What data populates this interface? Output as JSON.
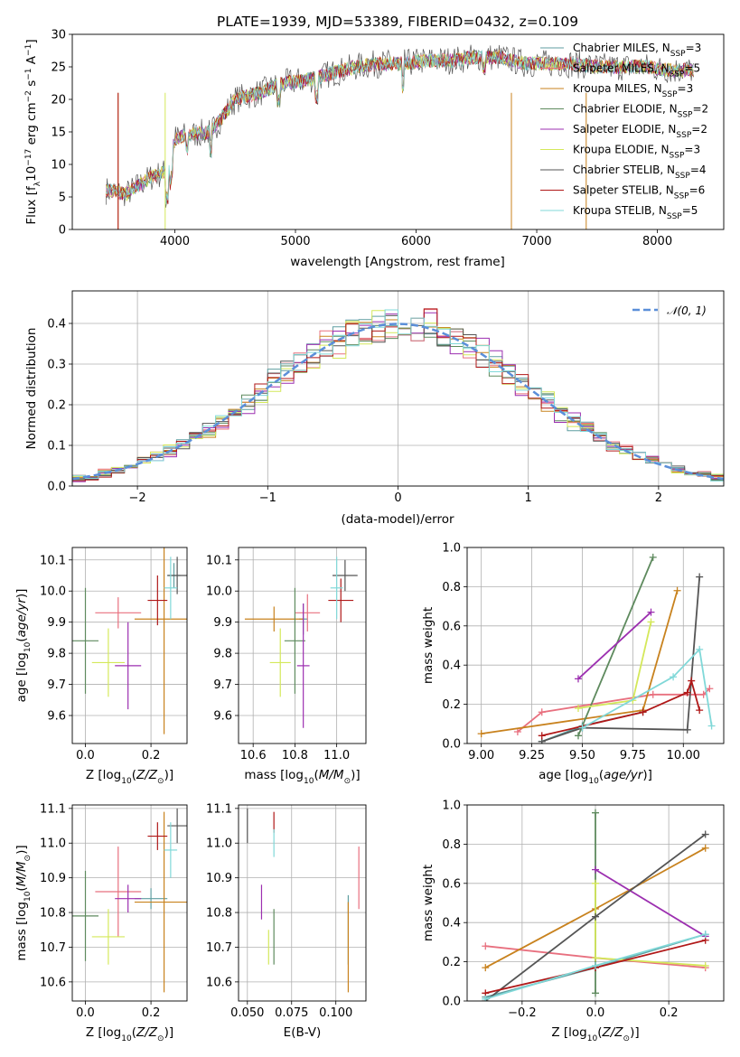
{
  "title": "PLATE=1939, MJD=53389, FIBERID=0432, z=0.109",
  "colors": {
    "Chabrier MILES": "#5f9ea0",
    "Salpeter MILES": "#e8707f",
    "Kroupa MILES": "#c8821e",
    "Chabrier ELODIE": "#5e8a5e",
    "Salpeter ELODIE": "#9c2fb0",
    "Kroupa ELODIE": "#d4e85a",
    "Chabrier STELIB": "#555555",
    "Salpeter STELIB": "#b01818",
    "Kroupa STELIB": "#80d8d8",
    "gauss": "#5b8fd9"
  },
  "chart_data": [
    {
      "id": "spectrum",
      "type": "line",
      "xlabel": "wavelength [Angstrom, rest frame]",
      "ylabel": "Flux [f_λ10^-17 erg cm^-2 s^-1 A^-1]",
      "xlim": [
        3150,
        8550
      ],
      "ylim": [
        0,
        30
      ],
      "xticks": [
        "4000",
        "5000",
        "6000",
        "7000",
        "8000"
      ],
      "yticks": [
        "0",
        "5",
        "10",
        "15",
        "20",
        "25",
        "30"
      ],
      "grid": false,
      "legend": "top-right",
      "legend_entries": [
        "Chabrier MILES, N_SSP=3",
        "Salpeter MILES, N_SSP=5",
        "Kroupa MILES, N_SSP=3",
        "Chabrier ELODIE, N_SSP=2",
        "Salpeter ELODIE, N_SSP=2",
        "Kroupa ELODIE, N_SSP=3",
        "Chabrier STELIB, N_SSP=4",
        "Salpeter STELIB, N_SSP=6",
        "Kroupa STELIB, N_SSP=5"
      ],
      "x": [
        3450,
        3600,
        3800,
        3950,
        4000,
        4100,
        4300,
        4500,
        4700,
        4900,
        5100,
        5300,
        5500,
        5700,
        5900,
        6100,
        6300,
        6500,
        6700,
        6900,
        7100,
        7300,
        7500,
        7700,
        7900,
        8100,
        8300
      ],
      "y": [
        6,
        5.5,
        8,
        9,
        14,
        14.5,
        15,
        20,
        21,
        22.5,
        23,
        24,
        25,
        25.5,
        25.5,
        26,
        26,
        26.5,
        26.5,
        25.5,
        25.5,
        25.5,
        25,
        25,
        25,
        24.5,
        24.5
      ]
    },
    {
      "id": "residual-histogram",
      "type": "bar",
      "xlabel": "(data-model)/error",
      "ylabel": "Normed distribution",
      "xlim": [
        -2.5,
        2.5
      ],
      "ylim": [
        0,
        0.48
      ],
      "xticks": [
        "−2",
        "−1",
        "0",
        "1",
        "2"
      ],
      "yticks": [
        "0.0",
        "0.1",
        "0.2",
        "0.3",
        "0.4"
      ],
      "grid": true,
      "legend": "top-right",
      "legend_entries": [
        "𝒩(0, 1)"
      ],
      "bin_width": 0.1,
      "bin_start": -2.5
    },
    {
      "id": "age-vs-Z",
      "type": "scatter",
      "xlabel": "Z [log10(Z/Z⊙)]",
      "ylabel": "age [log10(age/yr)]",
      "xlim": [
        -0.04,
        0.31
      ],
      "ylim": [
        9.51,
        10.14
      ],
      "xticks": [
        "0.0",
        "0.2"
      ],
      "yticks": [
        "9.6",
        "9.7",
        "9.8",
        "9.9",
        "10.0",
        "10.1"
      ],
      "points": [
        {
          "series": "Chabrier MILES",
          "x": 0.27,
          "y": 10.05,
          "xerr": 0.02,
          "yerr": 0.04
        },
        {
          "series": "Salpeter MILES",
          "x": 0.1,
          "y": 9.93,
          "xerr": 0.07,
          "yerr": 0.05
        },
        {
          "series": "Kroupa MILES",
          "x": 0.24,
          "y": 9.91,
          "xerr": 0.09,
          "yerr": 0.37
        },
        {
          "series": "Chabrier ELODIE",
          "x": 0.0,
          "y": 9.84,
          "xerr": 0.04,
          "yerr": 0.17
        },
        {
          "series": "Salpeter ELODIE",
          "x": 0.13,
          "y": 9.76,
          "xerr": 0.04,
          "yerr": 0.14
        },
        {
          "series": "Kroupa ELODIE",
          "x": 0.07,
          "y": 9.77,
          "xerr": 0.05,
          "yerr": 0.11
        },
        {
          "series": "Chabrier STELIB",
          "x": 0.28,
          "y": 10.05,
          "xerr": 0.03,
          "yerr": 0.06
        },
        {
          "series": "Salpeter STELIB",
          "x": 0.22,
          "y": 9.97,
          "xerr": 0.03,
          "yerr": 0.08
        },
        {
          "series": "Kroupa STELIB",
          "x": 0.26,
          "y": 10.01,
          "xerr": 0.02,
          "yerr": 0.1
        }
      ]
    },
    {
      "id": "age-vs-mass",
      "type": "scatter",
      "xlabel": "mass [log10(M/M⊙)]",
      "ylabel": "",
      "xlim": [
        10.53,
        11.14
      ],
      "ylim": [
        9.51,
        10.14
      ],
      "xticks": [
        "10.6",
        "10.8",
        "11.0"
      ],
      "yticks": [
        "9.6",
        "9.7",
        "9.8",
        "9.9",
        "10.0",
        "10.1"
      ],
      "points": [
        {
          "series": "Chabrier MILES",
          "x": 10.84,
          "y": 9.91,
          "xerr": 0.02,
          "yerr": 0.05
        },
        {
          "series": "Salpeter MILES",
          "x": 10.86,
          "y": 9.93,
          "xerr": 0.06,
          "yerr": 0.06
        },
        {
          "series": "Kroupa MILES",
          "x": 10.7,
          "y": 9.91,
          "xerr": 0.14,
          "yerr": 0.04
        },
        {
          "series": "Chabrier ELODIE",
          "x": 10.8,
          "y": 9.84,
          "xerr": 0.05,
          "yerr": 0.17
        },
        {
          "series": "Salpeter ELODIE",
          "x": 10.84,
          "y": 9.76,
          "xerr": 0.03,
          "yerr": 0.2
        },
        {
          "series": "Kroupa ELODIE",
          "x": 10.73,
          "y": 9.77,
          "xerr": 0.05,
          "yerr": 0.11
        },
        {
          "series": "Chabrier STELIB",
          "x": 11.04,
          "y": 10.05,
          "xerr": 0.06,
          "yerr": 0.05
        },
        {
          "series": "Salpeter STELIB",
          "x": 11.02,
          "y": 9.97,
          "xerr": 0.06,
          "yerr": 0.07
        },
        {
          "series": "Kroupa STELIB",
          "x": 11.0,
          "y": 10.01,
          "xerr": 0.03,
          "yerr": 0.1
        }
      ]
    },
    {
      "id": "mass-weight-vs-age",
      "type": "line",
      "xlabel": "age [log10(age/yr)]",
      "ylabel": "mass weight",
      "xlim": [
        8.93,
        10.2
      ],
      "ylim": [
        0,
        1
      ],
      "xticks": [
        "9.00",
        "9.25",
        "9.50",
        "9.75",
        "10.00"
      ],
      "yticks": [
        "0.0",
        "0.2",
        "0.4",
        "0.6",
        "0.8",
        "1.0"
      ],
      "grid": true,
      "series": [
        {
          "name": "Chabrier MILES",
          "x": [
            9.3,
            9.5,
            9.8
          ],
          "y": [
            0.01,
            0.09,
            0.16
          ]
        },
        {
          "name": "Salpeter MILES",
          "x": [
            9.18,
            9.3,
            9.85,
            10.1,
            10.13
          ],
          "y": [
            0.06,
            0.16,
            0.25,
            0.25,
            0.28
          ]
        },
        {
          "name": "Kroupa MILES",
          "x": [
            9.0,
            9.8,
            9.97
          ],
          "y": [
            0.05,
            0.17,
            0.78
          ]
        },
        {
          "name": "Chabrier ELODIE",
          "x": [
            9.48,
            9.85
          ],
          "y": [
            0.04,
            0.95
          ]
        },
        {
          "name": "Salpeter ELODIE",
          "x": [
            9.48,
            9.84
          ],
          "y": [
            0.33,
            0.67
          ]
        },
        {
          "name": "Kroupa ELODIE",
          "x": [
            9.48,
            9.75,
            9.84
          ],
          "y": [
            0.18,
            0.22,
            0.62
          ]
        },
        {
          "name": "Chabrier STELIB",
          "x": [
            9.3,
            9.5,
            10.02,
            10.08
          ],
          "y": [
            0.01,
            0.08,
            0.07,
            0.85
          ]
        },
        {
          "name": "Salpeter STELIB",
          "x": [
            9.3,
            9.8,
            10.02,
            10.04,
            10.08
          ],
          "y": [
            0.04,
            0.16,
            0.26,
            0.32,
            0.17
          ]
        },
        {
          "name": "Kroupa STELIB",
          "x": [
            9.5,
            9.95,
            10.08,
            10.14
          ],
          "y": [
            0.08,
            0.34,
            0.48,
            0.09
          ]
        }
      ]
    },
    {
      "id": "mass-vs-Z",
      "type": "scatter",
      "xlabel": "Z [log10(Z/Z⊙)]",
      "ylabel": "mass [log10(M/M⊙)]",
      "xlim": [
        -0.04,
        0.31
      ],
      "ylim": [
        10.545,
        11.11
      ],
      "xticks": [
        "0.0",
        "0.2"
      ],
      "yticks": [
        "10.6",
        "10.7",
        "10.8",
        "10.9",
        "11.0",
        "11.1"
      ],
      "points": [
        {
          "series": "Chabrier MILES",
          "x": 0.2,
          "y": 10.84,
          "xerr": 0.05,
          "yerr": 0.03
        },
        {
          "series": "Salpeter MILES",
          "x": 0.1,
          "y": 10.86,
          "xerr": 0.07,
          "yerr": 0.13
        },
        {
          "series": "Kroupa MILES",
          "x": 0.24,
          "y": 10.83,
          "xerr": 0.09,
          "yerr": 0.26
        },
        {
          "series": "Chabrier ELODIE",
          "x": 0.0,
          "y": 10.79,
          "xerr": 0.04,
          "yerr": 0.13
        },
        {
          "series": "Salpeter ELODIE",
          "x": 0.13,
          "y": 10.84,
          "xerr": 0.04,
          "yerr": 0.04
        },
        {
          "series": "Kroupa ELODIE",
          "x": 0.07,
          "y": 10.73,
          "xerr": 0.05,
          "yerr": 0.08
        },
        {
          "series": "Chabrier STELIB",
          "x": 0.28,
          "y": 11.05,
          "xerr": 0.03,
          "yerr": 0.05
        },
        {
          "series": "Salpeter STELIB",
          "x": 0.22,
          "y": 11.02,
          "xerr": 0.03,
          "yerr": 0.04
        },
        {
          "series": "Kroupa STELIB",
          "x": 0.26,
          "y": 10.98,
          "xerr": 0.02,
          "yerr": 0.08
        }
      ]
    },
    {
      "id": "mass-vs-ebv",
      "type": "scatter",
      "xlabel": "E(B-V)",
      "ylabel": "",
      "xlim": [
        0.045,
        0.117
      ],
      "ylim": [
        10.545,
        11.11
      ],
      "xticks": [
        "0.050",
        "0.075",
        "0.100"
      ],
      "yticks": [
        "10.6",
        "10.7",
        "10.8",
        "10.9",
        "11.0",
        "11.1"
      ],
      "points": [
        {
          "series": "Chabrier MILES",
          "x": 0.107,
          "y": 10.75,
          "xerr": 0,
          "yerr": 0.1
        },
        {
          "series": "Salpeter MILES",
          "x": 0.113,
          "y": 10.9,
          "xerr": 0,
          "yerr": 0.09
        },
        {
          "series": "Kroupa MILES",
          "x": 0.107,
          "y": 10.7,
          "xerr": 0,
          "yerr": 0.13
        },
        {
          "series": "Chabrier ELODIE",
          "x": 0.065,
          "y": 10.73,
          "xerr": 0,
          "yerr": 0.08
        },
        {
          "series": "Salpeter ELODIE",
          "x": 0.058,
          "y": 10.83,
          "xerr": 0,
          "yerr": 0.05
        },
        {
          "series": "Kroupa ELODIE",
          "x": 0.062,
          "y": 10.7,
          "xerr": 0,
          "yerr": 0.05
        },
        {
          "series": "Chabrier STELIB",
          "x": 0.05,
          "y": 11.05,
          "xerr": 0,
          "yerr": 0.05
        },
        {
          "series": "Salpeter STELIB",
          "x": 0.065,
          "y": 11.06,
          "xerr": 0,
          "yerr": 0.03
        },
        {
          "series": "Kroupa STELIB",
          "x": 0.065,
          "y": 11.0,
          "xerr": 0,
          "yerr": 0.04
        }
      ]
    },
    {
      "id": "mass-weight-vs-Z",
      "type": "line",
      "xlabel": "Z [log10(Z/Z⊙)]",
      "ylabel": "mass weight",
      "xlim": [
        -0.35,
        0.35
      ],
      "ylim": [
        0,
        1
      ],
      "xticks": [
        "−0.2",
        "0.0",
        "0.2"
      ],
      "yticks": [
        "0.0",
        "0.2",
        "0.4",
        "0.6",
        "0.8",
        "1.0"
      ],
      "grid": true,
      "series": [
        {
          "name": "Chabrier MILES",
          "x": [
            -0.3,
            0.0,
            0.3
          ],
          "y": [
            0.02,
            0.17,
            0.34
          ]
        },
        {
          "name": "Salpeter MILES",
          "x": [
            -0.3,
            0.0,
            0.3
          ],
          "y": [
            0.28,
            0.22,
            0.17
          ]
        },
        {
          "name": "Kroupa MILES",
          "x": [
            -0.3,
            0.0,
            0.3
          ],
          "y": [
            0.17,
            0.47,
            0.78
          ]
        },
        {
          "name": "Chabrier ELODIE",
          "x": [
            0.0,
            0.0
          ],
          "y": [
            0.04,
            0.96
          ]
        },
        {
          "name": "Salpeter ELODIE",
          "x": [
            0.0,
            0.3
          ],
          "y": [
            0.67,
            0.33
          ]
        },
        {
          "name": "Kroupa ELODIE",
          "x": [
            0.0,
            0.0,
            0.3
          ],
          "y": [
            0.6,
            0.22,
            0.18
          ]
        },
        {
          "name": "Chabrier STELIB",
          "x": [
            -0.3,
            0.0,
            0.3
          ],
          "y": [
            0.0,
            0.43,
            0.85
          ]
        },
        {
          "name": "Salpeter STELIB",
          "x": [
            -0.3,
            0.0,
            0.3
          ],
          "y": [
            0.04,
            0.17,
            0.31
          ]
        },
        {
          "name": "Kroupa STELIB",
          "x": [
            -0.3,
            0.0,
            0.3
          ],
          "y": [
            0.01,
            0.18,
            0.34
          ]
        }
      ]
    }
  ]
}
